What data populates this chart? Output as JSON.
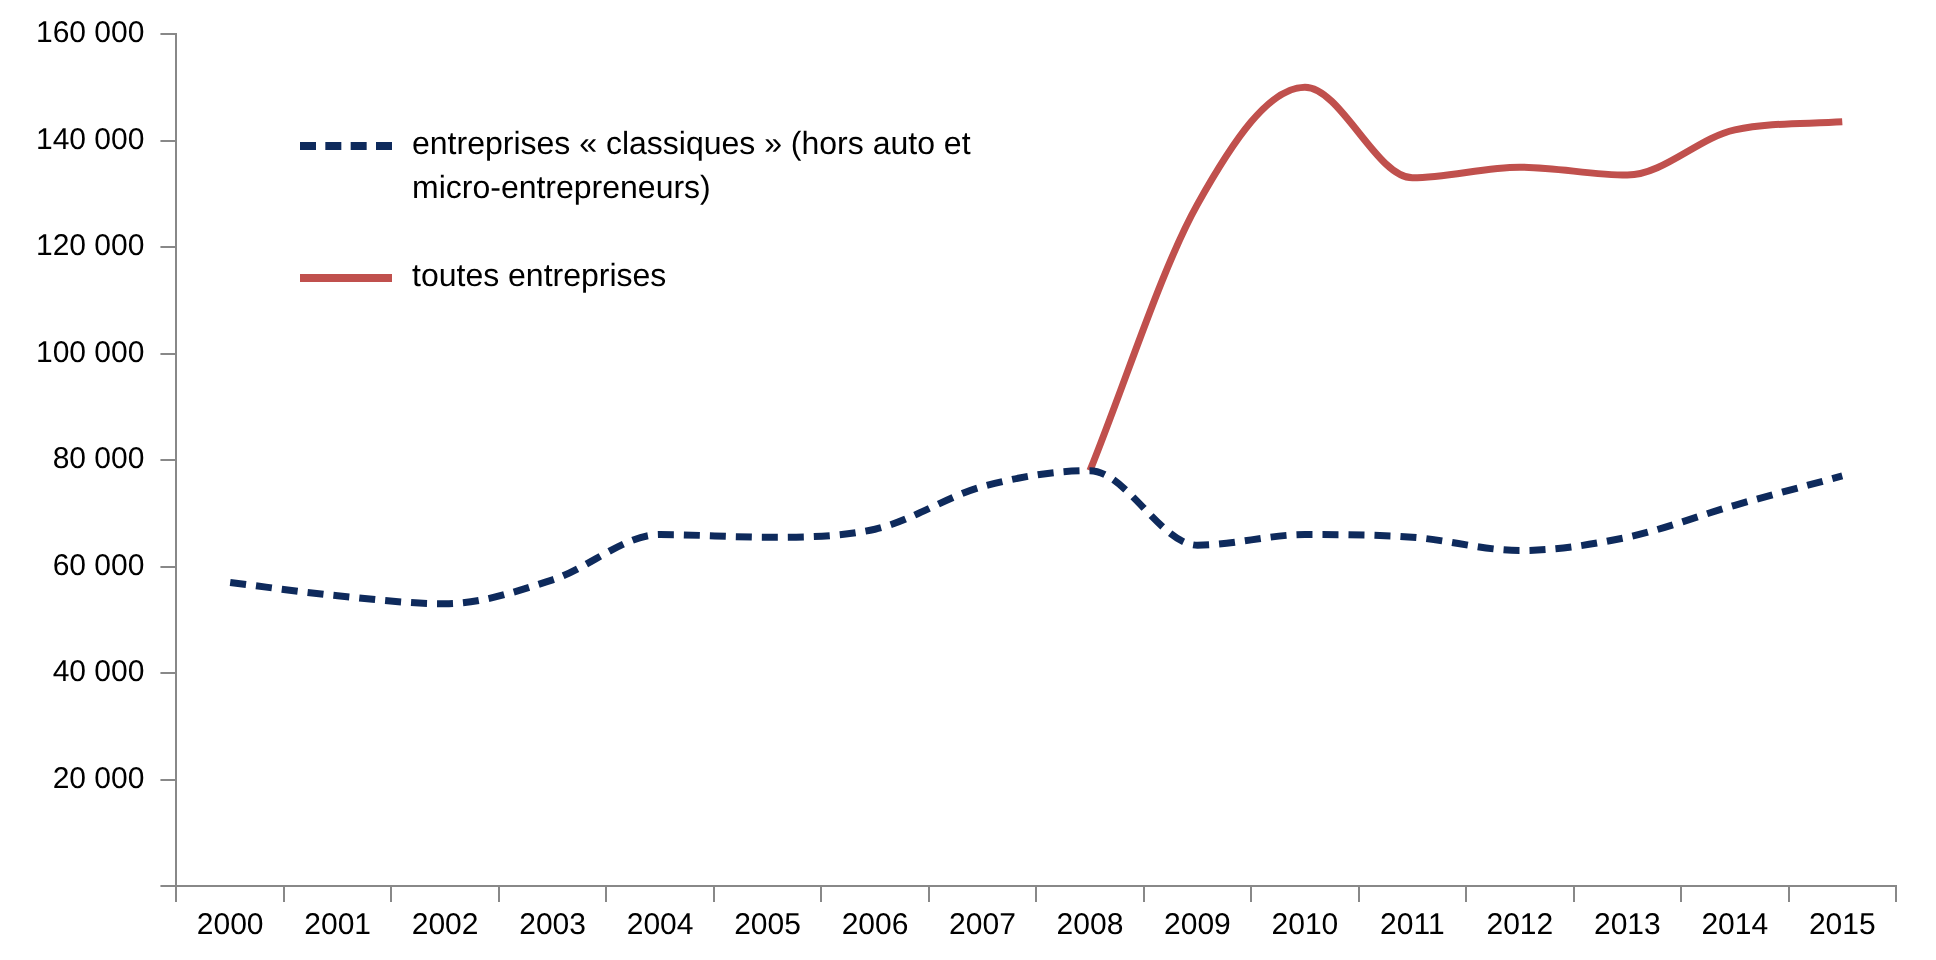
{
  "chart_data": {
    "type": "line",
    "categories": [
      "2000",
      "2001",
      "2002",
      "2003",
      "2004",
      "2005",
      "2006",
      "2007",
      "2008",
      "2009",
      "2010",
      "2011",
      "2012",
      "2013",
      "2014",
      "2015"
    ],
    "series": [
      {
        "name": "entreprises « classiques » (hors auto et micro-entrepreneurs)",
        "color": "#0e2a5c",
        "line_style": "dashed",
        "values": [
          57000,
          54500,
          53000,
          57500,
          66000,
          65500,
          67000,
          75000,
          78000,
          64000,
          66000,
          65500,
          63000,
          65500,
          71500,
          77000
        ]
      },
      {
        "name": "toutes entreprises",
        "color": "#c0504d",
        "line_style": "solid",
        "values": [
          null,
          null,
          null,
          null,
          null,
          null,
          null,
          null,
          78000,
          128000,
          150000,
          133000,
          135000,
          133500,
          142000,
          143500
        ]
      }
    ],
    "ylim": [
      0,
      160000
    ],
    "yticks": [
      {
        "value": 0,
        "label": null
      },
      {
        "value": 20000,
        "label": "20 000"
      },
      {
        "value": 40000,
        "label": "40 000"
      },
      {
        "value": 60000,
        "label": "60 000"
      },
      {
        "value": 80000,
        "label": "80 000"
      },
      {
        "value": 100000,
        "label": "100 000"
      },
      {
        "value": 120000,
        "label": "120 000"
      },
      {
        "value": 140000,
        "label": "140 000"
      },
      {
        "value": 160000,
        "label": "160 000"
      }
    ],
    "grid": false,
    "legend": "top left",
    "marker": "none"
  }
}
